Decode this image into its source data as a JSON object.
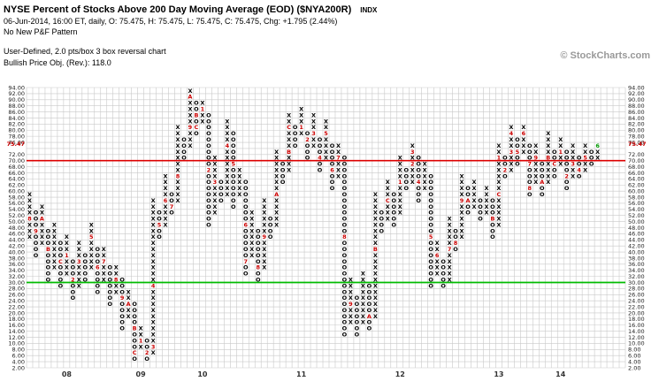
{
  "header": {
    "title": "NYSE Percent of Stocks Above 200 Day Moving Average (EOD) ($NYA200R)",
    "symbol_type": "INDX",
    "quote_line": "06-Jun-2014, 16:00 ET, daily, O: 75.475, H: 75.475, L: 75.475, C: 75.475, Chg: +1.795 (2.44%)",
    "pattern_line": "No New P&F Pattern",
    "settings_line": "User-Defined, 2.0 pts/box 3 box reversal chart",
    "objective_line": "Bullish Price Obj. (Rev.): 118.0",
    "copyright": "© StockCharts.com"
  },
  "chart_data": {
    "type": "point-and-figure",
    "title": "NYSE Percent of Stocks Above 200 Day Moving Average (EOD) ($NYA200R)",
    "box_size": 2.0,
    "reversal": 3,
    "y_axis": {
      "min": 2,
      "max": 94,
      "step": 2,
      "label_format": "0.00",
      "sides": "both"
    },
    "last_price": 75.47,
    "last_price_label": "75.47",
    "grid_columns": 97,
    "colors": {
      "x_o": "#000000",
      "month_marks": "#cc0000",
      "current_month_mark": "#009900",
      "grid": "#c9c9c9",
      "last_price": "#cc0000",
      "overbought_line": "#dd0000",
      "oversold_line": "#00bb00"
    },
    "overlays": [
      {
        "type": "hline",
        "value": 70,
        "color": "#dd0000",
        "name": "overbought-line-70"
      },
      {
        "type": "hline",
        "value": 30,
        "color": "#00bb00",
        "name": "oversold-line-30"
      }
    ],
    "year_labels": [
      {
        "label": "08",
        "col": 6
      },
      {
        "label": "09",
        "col": 18
      },
      {
        "label": "10",
        "col": 28
      },
      {
        "label": "11",
        "col": 44
      },
      {
        "label": "12",
        "col": 60
      },
      {
        "label": "13",
        "col": 76
      },
      {
        "label": "14",
        "col": 86
      }
    ],
    "columns": [
      {
        "t": "X",
        "b": 44,
        "u": 58,
        "m": [
          [
            50,
            "8"
          ]
        ]
      },
      {
        "t": "O",
        "b": 38,
        "u": 52,
        "m": [
          [
            46,
            "9"
          ]
        ]
      },
      {
        "t": "X",
        "b": 42,
        "u": 54,
        "m": [
          [
            50,
            "A"
          ]
        ]
      },
      {
        "t": "O",
        "b": 30,
        "u": 46,
        "m": [
          [
            40,
            "B"
          ]
        ]
      },
      {
        "t": "X",
        "b": 34,
        "u": 48
      },
      {
        "t": "O",
        "b": 28,
        "u": 42,
        "m": [
          [
            36,
            "C"
          ]
        ]
      },
      {
        "t": "X",
        "b": 32,
        "u": 44,
        "m": [
          [
            38,
            "1"
          ]
        ]
      },
      {
        "t": "O",
        "b": 24,
        "u": 36,
        "m": [
          [
            30,
            "2"
          ]
        ]
      },
      {
        "t": "X",
        "b": 28,
        "u": 42,
        "m": [
          [
            36,
            "3"
          ]
        ]
      },
      {
        "t": "O",
        "b": 30,
        "u": 38
      },
      {
        "t": "X",
        "b": 34,
        "u": 48,
        "m": [
          [
            44,
            "5"
          ]
        ]
      },
      {
        "t": "O",
        "b": 26,
        "u": 40,
        "m": [
          [
            34,
            "6"
          ]
        ]
      },
      {
        "t": "X",
        "b": 30,
        "u": 40,
        "m": [
          [
            36,
            "7"
          ]
        ]
      },
      {
        "t": "O",
        "b": 22,
        "u": 34
      },
      {
        "t": "X",
        "b": 26,
        "u": 34,
        "m": [
          [
            30,
            "8"
          ]
        ]
      },
      {
        "t": "O",
        "b": 14,
        "u": 30,
        "m": [
          [
            24,
            "9"
          ]
        ]
      },
      {
        "t": "X",
        "b": 18,
        "u": 26,
        "m": [
          [
            22,
            "A"
          ]
        ]
      },
      {
        "t": "O",
        "b": 4,
        "u": 22,
        "m": [
          [
            14,
            "B"
          ],
          [
            6,
            "C"
          ]
        ]
      },
      {
        "t": "X",
        "b": 8,
        "u": 14,
        "m": [
          [
            10,
            "1"
          ]
        ]
      },
      {
        "t": "O",
        "b": 4,
        "u": 10,
        "m": [
          [
            6,
            "2"
          ]
        ]
      },
      {
        "t": "X",
        "b": 6,
        "u": 56,
        "m": [
          [
            8,
            "3"
          ],
          [
            28,
            "4"
          ]
        ]
      },
      {
        "t": "O",
        "b": 44,
        "u": 52,
        "m": [
          [
            48,
            "5"
          ]
        ]
      },
      {
        "t": "X",
        "b": 48,
        "u": 64,
        "m": [
          [
            56,
            "6"
          ]
        ]
      },
      {
        "t": "O",
        "b": 52,
        "u": 58,
        "m": [
          [
            54,
            "7"
          ]
        ]
      },
      {
        "t": "X",
        "b": 56,
        "u": 80,
        "m": [
          [
            64,
            "8"
          ]
        ]
      },
      {
        "t": "O",
        "b": 70,
        "u": 76
      },
      {
        "t": "X",
        "b": 74,
        "u": 92,
        "m": [
          [
            80,
            "9"
          ],
          [
            90,
            "A"
          ]
        ]
      },
      {
        "t": "O",
        "b": 78,
        "u": 88,
        "m": [
          [
            84,
            "B"
          ],
          [
            80,
            "C"
          ]
        ]
      },
      {
        "t": "X",
        "b": 82,
        "u": 88,
        "m": [
          [
            86,
            "1"
          ]
        ]
      },
      {
        "t": "O",
        "b": 48,
        "u": 84,
        "m": [
          [
            66,
            "2"
          ]
        ]
      },
      {
        "t": "X",
        "b": 52,
        "u": 70,
        "m": [
          [
            62,
            "3"
          ]
        ]
      },
      {
        "t": "O",
        "b": 56,
        "u": 62
      },
      {
        "t": "X",
        "b": 58,
        "u": 82,
        "m": [
          [
            74,
            "4"
          ]
        ]
      },
      {
        "t": "O",
        "b": 54,
        "u": 78,
        "m": [
          [
            68,
            "5"
          ]
        ]
      },
      {
        "t": "X",
        "b": 58,
        "u": 66
      },
      {
        "t": "O",
        "b": 32,
        "u": 62,
        "m": [
          [
            48,
            "6"
          ],
          [
            36,
            "7"
          ]
        ]
      },
      {
        "t": "X",
        "b": 38,
        "u": 52
      },
      {
        "t": "O",
        "b": 30,
        "u": 46,
        "m": [
          [
            34,
            "8"
          ]
        ]
      },
      {
        "t": "X",
        "b": 34,
        "u": 56,
        "m": [
          [
            44,
            "9"
          ]
        ]
      },
      {
        "t": "O",
        "b": 44,
        "u": 50
      },
      {
        "t": "X",
        "b": 48,
        "u": 72,
        "m": [
          [
            58,
            "A"
          ]
        ]
      },
      {
        "t": "O",
        "b": 62,
        "u": 68
      },
      {
        "t": "X",
        "b": 66,
        "u": 84,
        "m": [
          [
            72,
            "B"
          ],
          [
            80,
            "C"
          ]
        ]
      },
      {
        "t": "O",
        "b": 74,
        "u": 80
      },
      {
        "t": "X",
        "b": 78,
        "u": 86,
        "m": [
          [
            80,
            "1"
          ]
        ]
      },
      {
        "t": "O",
        "b": 70,
        "u": 78,
        "m": [
          [
            76,
            "2"
          ]
        ]
      },
      {
        "t": "X",
        "b": 74,
        "u": 84,
        "m": [
          [
            78,
            "3"
          ]
        ]
      },
      {
        "t": "O",
        "b": 66,
        "u": 76,
        "m": [
          [
            70,
            "4"
          ]
        ]
      },
      {
        "t": "X",
        "b": 70,
        "u": 82,
        "m": [
          [
            78,
            "5"
          ]
        ]
      },
      {
        "t": "O",
        "b": 60,
        "u": 74,
        "m": [
          [
            66,
            "6"
          ]
        ]
      },
      {
        "t": "X",
        "b": 64,
        "u": 74,
        "m": [
          [
            70,
            "7"
          ]
        ]
      },
      {
        "t": "O",
        "b": 12,
        "u": 70,
        "m": [
          [
            44,
            "8"
          ]
        ]
      },
      {
        "t": "X",
        "b": 16,
        "u": 30,
        "m": [
          [
            22,
            "9"
          ]
        ]
      },
      {
        "t": "O",
        "b": 12,
        "u": 24
      },
      {
        "t": "X",
        "b": 16,
        "u": 32
      },
      {
        "t": "O",
        "b": 14,
        "u": 28,
        "m": [
          [
            18,
            "A"
          ]
        ]
      },
      {
        "t": "X",
        "b": 18,
        "u": 58,
        "m": [
          [
            40,
            "B"
          ]
        ]
      },
      {
        "t": "O",
        "b": 46,
        "u": 52
      },
      {
        "t": "X",
        "b": 50,
        "u": 62,
        "m": [
          [
            56,
            "C"
          ]
        ]
      },
      {
        "t": "O",
        "b": 48,
        "u": 58
      },
      {
        "t": "X",
        "b": 52,
        "u": 70,
        "m": [
          [
            62,
            "1"
          ]
        ]
      },
      {
        "t": "O",
        "b": 60,
        "u": 66
      },
      {
        "t": "X",
        "b": 62,
        "u": 74,
        "m": [
          [
            68,
            "2"
          ],
          [
            72,
            "3"
          ]
        ]
      },
      {
        "t": "O",
        "b": 56,
        "u": 70,
        "m": [
          [
            62,
            "4"
          ]
        ]
      },
      {
        "t": "X",
        "b": 60,
        "u": 68
      },
      {
        "t": "O",
        "b": 28,
        "u": 64,
        "m": [
          [
            44,
            "5"
          ]
        ]
      },
      {
        "t": "X",
        "b": 32,
        "u": 42,
        "m": [
          [
            38,
            "6"
          ]
        ]
      },
      {
        "t": "O",
        "b": 28,
        "u": 36
      },
      {
        "t": "X",
        "b": 30,
        "u": 50,
        "m": [
          [
            40,
            "7"
          ]
        ]
      },
      {
        "t": "O",
        "b": 40,
        "u": 46,
        "m": [
          [
            42,
            "8"
          ]
        ]
      },
      {
        "t": "X",
        "b": 44,
        "u": 64,
        "m": [
          [
            56,
            "9"
          ]
        ]
      },
      {
        "t": "O",
        "b": 52,
        "u": 60,
        "m": [
          [
            56,
            "A"
          ]
        ]
      },
      {
        "t": "X",
        "b": 54,
        "u": 62
      },
      {
        "t": "O",
        "b": 50,
        "u": 56
      },
      {
        "t": "X",
        "b": 52,
        "u": 60
      },
      {
        "t": "O",
        "b": 44,
        "u": 56,
        "m": [
          [
            50,
            "B"
          ]
        ]
      },
      {
        "t": "X",
        "b": 48,
        "u": 74,
        "m": [
          [
            58,
            "C"
          ],
          [
            70,
            "1"
          ]
        ]
      },
      {
        "t": "O",
        "b": 64,
        "u": 70,
        "m": [
          [
            66,
            "2"
          ]
        ]
      },
      {
        "t": "X",
        "b": 66,
        "u": 80,
        "m": [
          [
            72,
            "3"
          ],
          [
            78,
            "4"
          ]
        ]
      },
      {
        "t": "O",
        "b": 68,
        "u": 76,
        "m": [
          [
            72,
            "5"
          ]
        ]
      },
      {
        "t": "X",
        "b": 72,
        "u": 80,
        "m": [
          [
            78,
            "6"
          ]
        ]
      },
      {
        "t": "O",
        "b": 58,
        "u": 74,
        "m": [
          [
            68,
            "7"
          ],
          [
            60,
            "8"
          ]
        ]
      },
      {
        "t": "X",
        "b": 62,
        "u": 74,
        "m": [
          [
            70,
            "9"
          ]
        ]
      },
      {
        "t": "O",
        "b": 58,
        "u": 68,
        "m": [
          [
            62,
            "A"
          ]
        ]
      },
      {
        "t": "X",
        "b": 62,
        "u": 78,
        "m": [
          [
            70,
            "B"
          ]
        ]
      },
      {
        "t": "O",
        "b": 64,
        "u": 72,
        "m": [
          [
            68,
            "C"
          ]
        ]
      },
      {
        "t": "X",
        "b": 68,
        "u": 76,
        "m": [
          [
            72,
            "1"
          ]
        ]
      },
      {
        "t": "O",
        "b": 60,
        "u": 72,
        "m": [
          [
            64,
            "2"
          ]
        ]
      },
      {
        "t": "X",
        "b": 64,
        "u": 74,
        "m": [
          [
            68,
            "3"
          ]
        ]
      },
      {
        "t": "O",
        "b": 64,
        "u": 70,
        "m": [
          [
            66,
            "4"
          ]
        ]
      },
      {
        "t": "X",
        "b": 66,
        "u": 74,
        "m": [
          [
            70,
            "5"
          ]
        ]
      },
      {
        "t": "O",
        "b": 68,
        "u": 72
      },
      {
        "t": "X",
        "b": 70,
        "u": 74,
        "m": [
          [
            74,
            "6",
            "#009900"
          ]
        ]
      }
    ]
  }
}
